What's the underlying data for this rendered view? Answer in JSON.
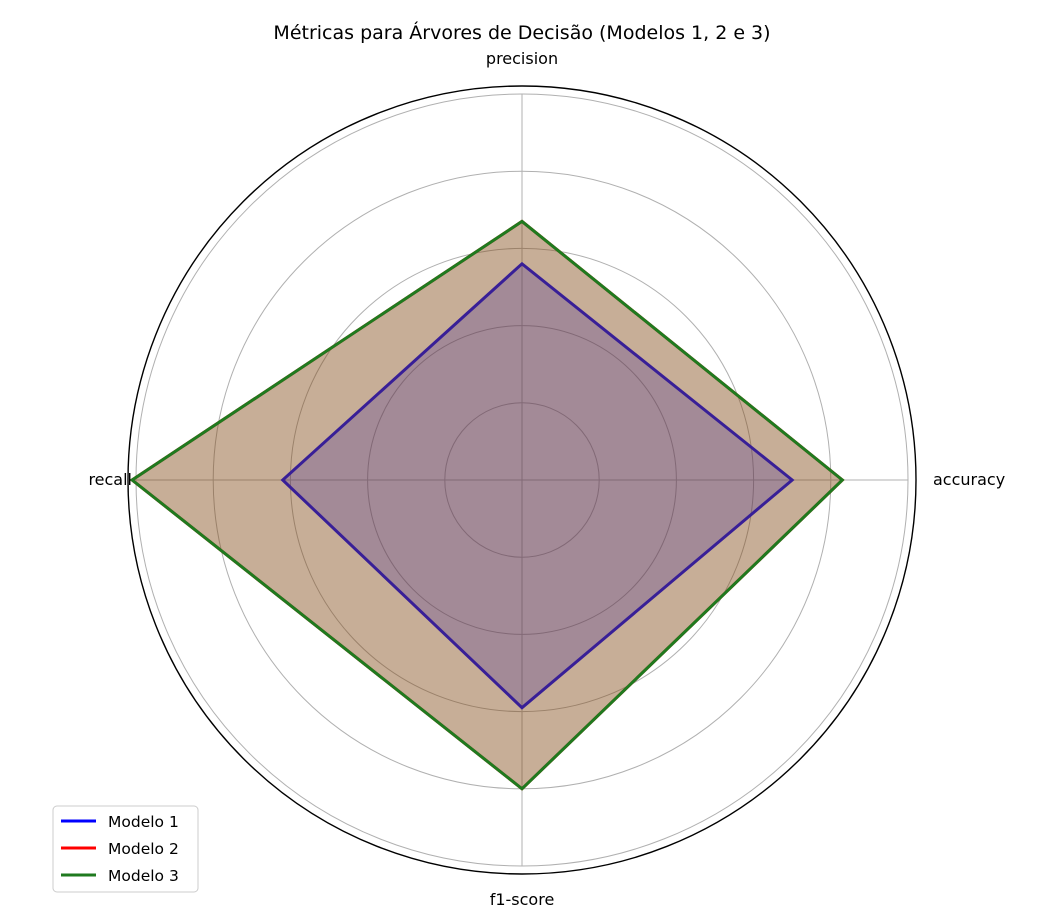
{
  "chart_data": {
    "type": "radar",
    "title": "Métricas para Árvores de Decisão (Modelos 1, 2 e 3)",
    "axes": [
      "accuracy",
      "precision",
      "recall",
      "f1-score"
    ],
    "rlim": [
      0,
      1
    ],
    "grid": true,
    "grid_levels": [
      0.2,
      0.4,
      0.6,
      0.8,
      1.0
    ],
    "radial_tick_labels_shown": false,
    "legend": {
      "placement": "bottom-left",
      "entries": [
        "Modelo 1",
        "Modelo 2",
        "Modelo 3"
      ]
    },
    "series": [
      {
        "name": "Modelo 1",
        "color": "#0000ff",
        "values": [
          0.7,
          0.56,
          0.62,
          0.59
        ]
      },
      {
        "name": "Modelo 2",
        "color": "#ff0000",
        "values": [
          0.83,
          0.67,
          1.01,
          0.8
        ]
      },
      {
        "name": "Modelo 3",
        "color": "#1f7a1f",
        "values": [
          0.83,
          0.67,
          1.01,
          0.8
        ]
      }
    ]
  }
}
